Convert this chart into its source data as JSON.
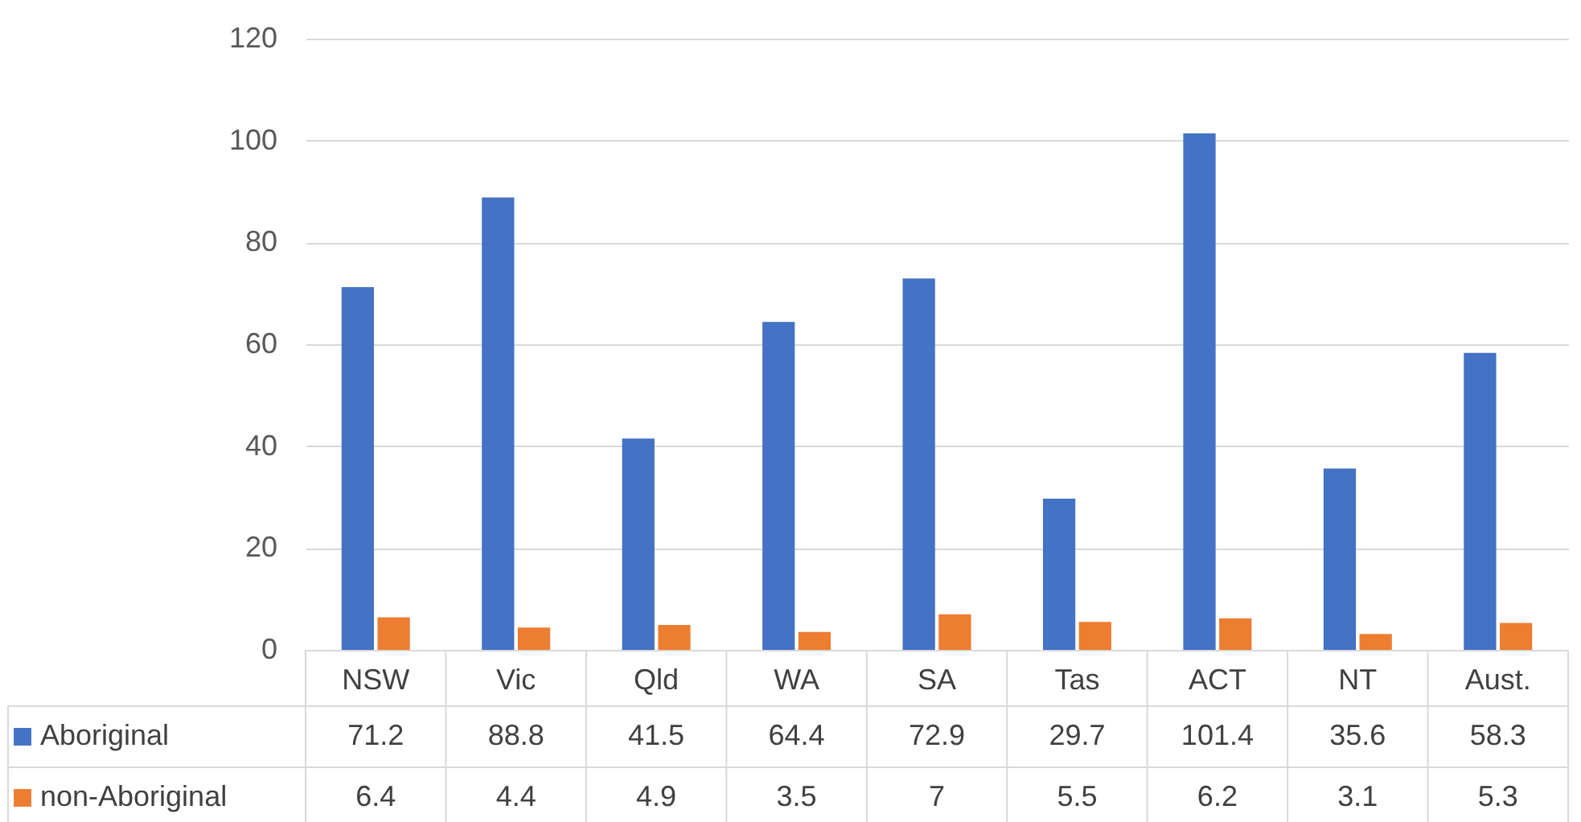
{
  "chart_data": {
    "type": "bar",
    "categories": [
      "NSW",
      "Vic",
      "Qld",
      "WA",
      "SA",
      "Tas",
      "ACT",
      "NT",
      "Aust."
    ],
    "series": [
      {
        "name": "Aboriginal",
        "color": "#4472c4",
        "values": [
          71.2,
          88.8,
          41.5,
          64.4,
          72.9,
          29.7,
          101.4,
          35.6,
          58.3
        ]
      },
      {
        "name": "non-Aboriginal",
        "color": "#ed7d31",
        "values": [
          6.4,
          4.4,
          4.9,
          3.5,
          7,
          5.5,
          6.2,
          3.1,
          5.3
        ]
      }
    ],
    "ylim": [
      0,
      120
    ],
    "yticks": [
      0,
      20,
      40,
      60,
      80,
      100,
      120
    ],
    "grid": "y",
    "data_labels": true,
    "legend": "bottom"
  }
}
